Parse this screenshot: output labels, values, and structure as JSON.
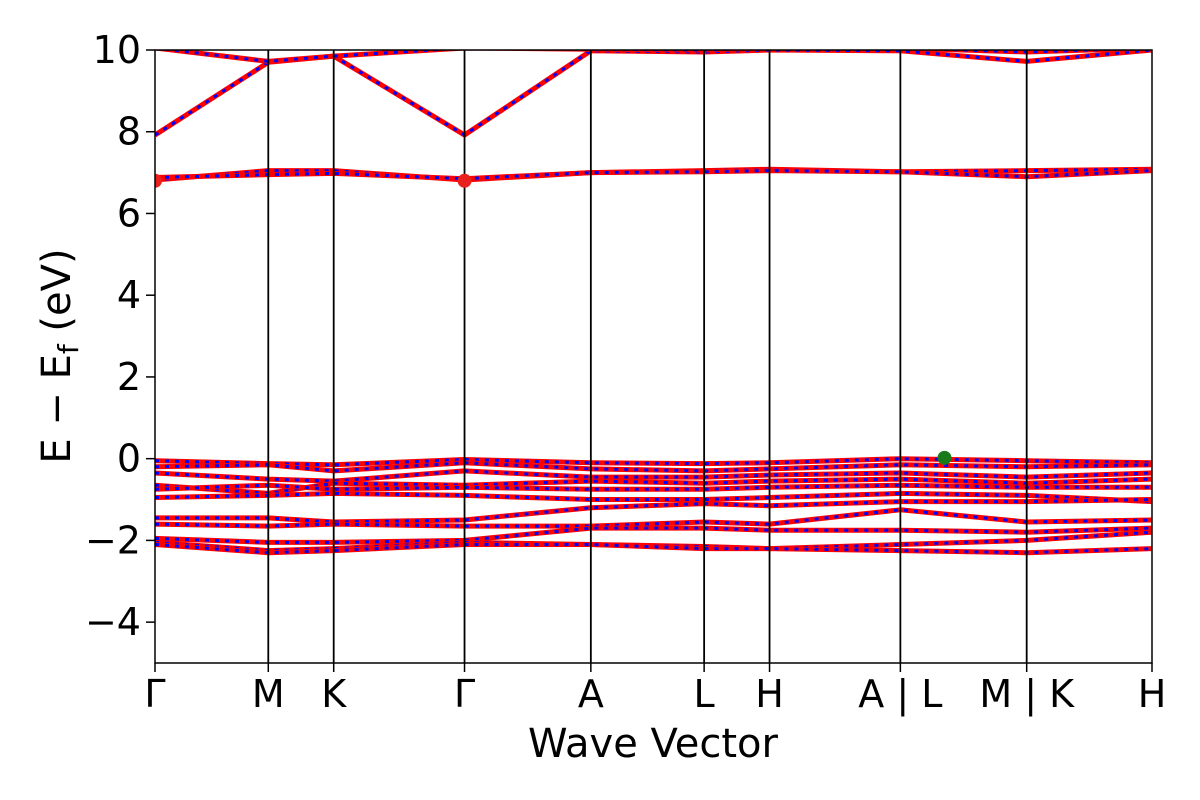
{
  "chart_data": {
    "type": "line",
    "title": "",
    "xlabel": "Wave Vector",
    "ylabel_parts": {
      "main": "E − E",
      "sub": "f",
      "unit": " (eV)"
    },
    "ylim": [
      -5,
      10
    ],
    "yticks": [
      -4,
      -2,
      0,
      2,
      4,
      6,
      8,
      10
    ],
    "ytick_labels": [
      "−4",
      "−2",
      "0",
      "2",
      "4",
      "6",
      "8",
      "10"
    ],
    "kpoints": [
      {
        "label": "Γ",
        "x": 0.0
      },
      {
        "label": "M",
        "x": 0.904
      },
      {
        "label": "K",
        "x": 1.426
      },
      {
        "label": "Γ",
        "x": 2.47
      },
      {
        "label": "A",
        "x": 3.478
      },
      {
        "label": "L",
        "x": 4.382
      },
      {
        "label": "H",
        "x": 4.904
      },
      {
        "label": "A | L",
        "x": 5.948
      },
      {
        "label": "M | K",
        "x": 6.956
      },
      {
        "label": "H",
        "x": 7.956
      }
    ],
    "xlim": [
      0,
      7.956
    ],
    "grid": false,
    "legend": "none",
    "colors": {
      "spin_up": "#ff0000",
      "spin_down": "#0000ff",
      "cbm_marker": "#e8211d",
      "vbm_marker": "#1a7a1a",
      "kpath_lines": "#000000"
    },
    "series": [
      {
        "x": [
          0,
          0.904,
          1.426,
          2.47,
          3.478,
          4.382,
          4.904,
          5.948,
          6.956,
          7.956
        ],
        "y": [
          7.92,
          9.7,
          9.85,
          7.92,
          9.98,
          9.95,
          10.0,
          9.98,
          9.72,
          10.0
        ]
      },
      {
        "x": [
          0,
          0.904,
          1.426,
          2.47,
          3.478,
          4.382,
          4.904,
          5.948,
          6.956,
          7.956
        ],
        "y": [
          10.05,
          9.72,
          9.85,
          10.05,
          10.02,
          10.0,
          10.05,
          10.05,
          9.95,
          10.05
        ]
      },
      {
        "x": [
          0,
          0.904,
          1.426,
          2.47,
          3.478,
          4.382,
          4.904,
          5.948,
          6.956,
          7.956
        ],
        "y": [
          6.82,
          7.05,
          7.05,
          6.82,
          7.0,
          7.05,
          7.08,
          7.02,
          7.05,
          7.08
        ]
      },
      {
        "x": [
          0,
          0.904,
          1.426,
          2.47,
          3.478,
          4.382,
          4.904,
          5.948,
          6.956,
          7.956
        ],
        "y": [
          6.88,
          6.95,
          6.98,
          6.85,
          7.0,
          7.02,
          7.05,
          7.02,
          6.9,
          7.05
        ]
      },
      {
        "x": [
          0,
          0.904,
          1.426,
          2.47,
          3.478,
          4.382,
          4.904,
          5.948,
          6.956,
          7.956
        ],
        "y": [
          -0.05,
          -0.12,
          -0.15,
          -0.02,
          -0.1,
          -0.12,
          -0.1,
          0.0,
          -0.05,
          -0.1
        ]
      },
      {
        "x": [
          0,
          0.904,
          1.426,
          2.47,
          3.478,
          4.382,
          4.904,
          5.948,
          6.956,
          7.956
        ],
        "y": [
          -0.2,
          -0.15,
          -0.3,
          -0.1,
          -0.25,
          -0.3,
          -0.25,
          -0.15,
          -0.2,
          -0.15
        ]
      },
      {
        "x": [
          0,
          0.904,
          1.426,
          2.47,
          3.478,
          4.382,
          4.904,
          5.948,
          6.956,
          7.956
        ],
        "y": [
          -0.35,
          -0.5,
          -0.55,
          -0.3,
          -0.45,
          -0.45,
          -0.4,
          -0.35,
          -0.45,
          -0.35
        ]
      },
      {
        "x": [
          0,
          0.904,
          1.426,
          2.47,
          3.478,
          4.382,
          4.904,
          5.948,
          6.956,
          7.956
        ],
        "y": [
          -0.65,
          -0.85,
          -0.6,
          -0.65,
          -0.55,
          -0.6,
          -0.55,
          -0.5,
          -0.6,
          -0.5
        ]
      },
      {
        "x": [
          0,
          0.904,
          1.426,
          2.47,
          3.478,
          4.382,
          4.904,
          5.948,
          6.956,
          7.956
        ],
        "y": [
          -0.75,
          -0.65,
          -0.75,
          -0.7,
          -0.75,
          -0.75,
          -0.7,
          -0.65,
          -0.7,
          -0.7
        ]
      },
      {
        "x": [
          0,
          0.904,
          1.426,
          2.47,
          3.478,
          4.382,
          4.904,
          5.948,
          6.956,
          7.956
        ],
        "y": [
          -0.95,
          -0.9,
          -0.85,
          -0.9,
          -1.0,
          -1.0,
          -0.95,
          -0.85,
          -0.9,
          -1.05
        ]
      },
      {
        "x": [
          0,
          0.904,
          1.426,
          2.47,
          3.478,
          4.382,
          4.904,
          5.948,
          6.956,
          7.956
        ],
        "y": [
          -1.45,
          -1.45,
          -1.55,
          -1.5,
          -1.2,
          -1.1,
          -1.15,
          -1.05,
          -1.05,
          -1.0
        ]
      },
      {
        "x": [
          0,
          0.904,
          1.426,
          2.47,
          3.478,
          4.382,
          4.904,
          5.948,
          6.956,
          7.956
        ],
        "y": [
          -1.6,
          -1.65,
          -1.6,
          -1.65,
          -1.65,
          -1.55,
          -1.6,
          -1.25,
          -1.55,
          -1.5
        ]
      },
      {
        "x": [
          0,
          0.904,
          1.426,
          2.47,
          3.478,
          4.382,
          4.904,
          5.948,
          6.956,
          7.956
        ],
        "y": [
          -1.95,
          -2.05,
          -2.05,
          -2.0,
          -1.7,
          -1.7,
          -1.75,
          -1.75,
          -1.8,
          -1.7
        ]
      },
      {
        "x": [
          0,
          0.904,
          1.426,
          2.47,
          3.478,
          4.382,
          4.904,
          5.948,
          6.956,
          7.956
        ],
        "y": [
          -2.05,
          -2.25,
          -2.2,
          -2.05,
          -2.1,
          -2.15,
          -2.2,
          -2.1,
          -2.0,
          -1.8
        ]
      },
      {
        "x": [
          0,
          0.904,
          1.426,
          2.47,
          3.478,
          4.382,
          4.904,
          5.948,
          6.956,
          7.956
        ],
        "y": [
          -2.1,
          -2.3,
          -2.25,
          -2.1,
          -2.1,
          -2.2,
          -2.2,
          -2.25,
          -2.3,
          -2.2
        ]
      }
    ],
    "markers": [
      {
        "name": "cbm-point",
        "x": 0.0,
        "y": 6.8,
        "color": "#e8211d"
      },
      {
        "name": "cbm-point",
        "x": 2.47,
        "y": 6.8,
        "color": "#e8211d"
      },
      {
        "name": "vbm-point",
        "x": 6.3,
        "y": 0.02,
        "color": "#1a7a1a"
      }
    ]
  }
}
